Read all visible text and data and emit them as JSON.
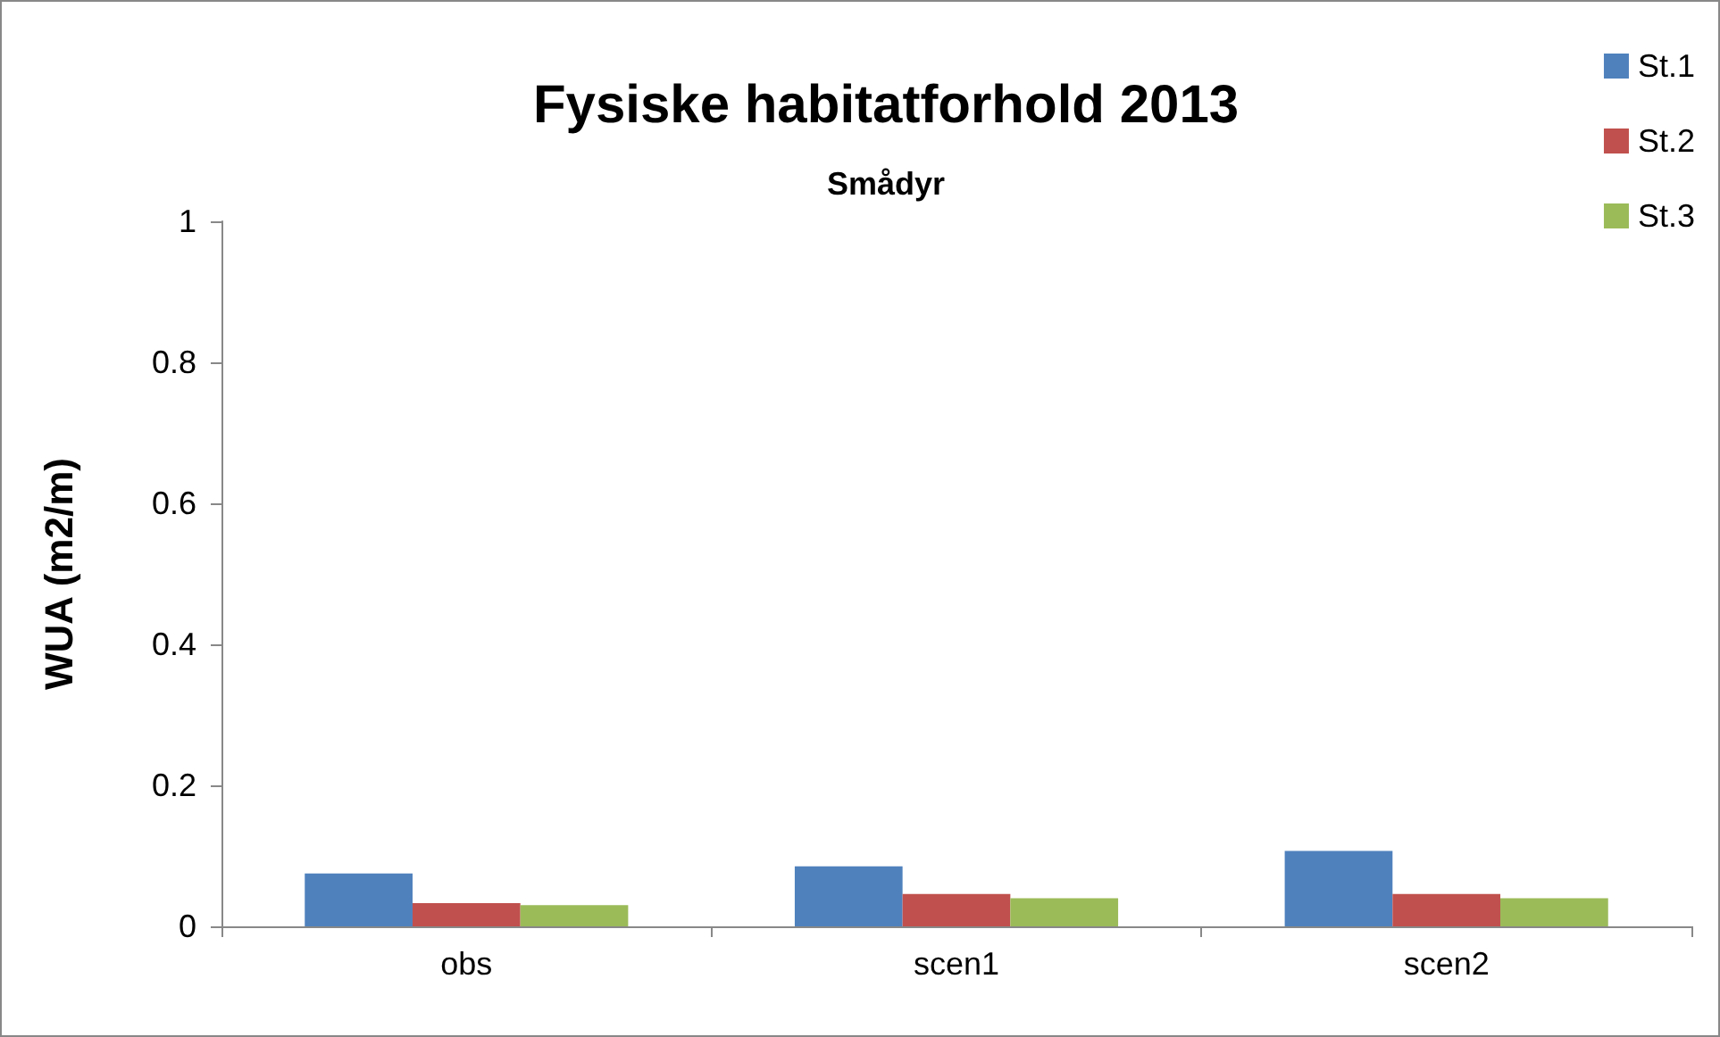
{
  "chart_data": {
    "type": "bar",
    "title": "Fysiske habitatforhold 2013",
    "subtitle": "Smådyr",
    "ylabel": "WUA (m2/m)",
    "categories": [
      "obs",
      "scen1",
      "scen2"
    ],
    "series": [
      {
        "name": "St.1",
        "color": "#4f81bd",
        "values": [
          0.075,
          0.085,
          0.107
        ]
      },
      {
        "name": "St.2",
        "color": "#c0504d",
        "values": [
          0.033,
          0.046,
          0.046
        ]
      },
      {
        "name": "St.3",
        "color": "#9bbb59",
        "values": [
          0.03,
          0.04,
          0.04
        ]
      }
    ],
    "ylim": [
      0,
      1
    ],
    "yticks": [
      0,
      0.2,
      0.4,
      0.6,
      0.8,
      1
    ],
    "grid": false,
    "legend": "top right"
  }
}
